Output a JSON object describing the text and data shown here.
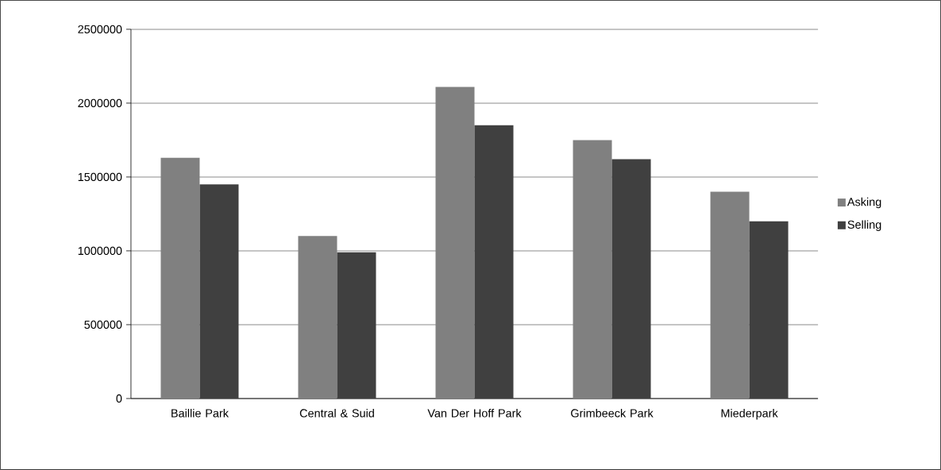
{
  "chart_data": {
    "type": "bar",
    "categories": [
      "Baillie Park",
      "Central & Suid",
      "Van Der Hoff Park",
      "Grimbeeck Park",
      "Miederpark"
    ],
    "series": [
      {
        "name": "Asking",
        "color": "#808080",
        "values": [
          1630000,
          1100000,
          2110000,
          1750000,
          1400000
        ]
      },
      {
        "name": "Selling",
        "color": "#404040",
        "values": [
          1450000,
          990000,
          1850000,
          1620000,
          1200000
        ]
      }
    ],
    "ylim": [
      0,
      2500000
    ],
    "yticks": [
      0,
      500000,
      1000000,
      1500000,
      2000000,
      2500000
    ],
    "grid": "y",
    "legend": "right"
  }
}
